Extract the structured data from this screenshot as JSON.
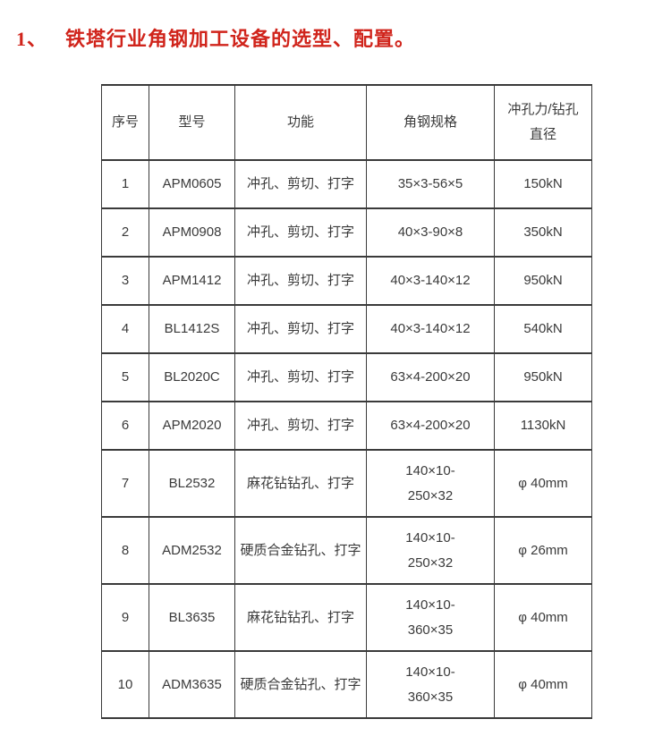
{
  "title": {
    "number": "1、",
    "text": "铁塔行业角钢加工设备的选型、配置。",
    "color": "#d0241b"
  },
  "table": {
    "headers": [
      "序号",
      "型号",
      "功能",
      "角钢规格",
      "冲孔力/钻孔\n直径"
    ],
    "rows": [
      {
        "seq": "1",
        "model": "APM0605",
        "func": "冲孔、剪切、打字",
        "spec": "35×3-56×5",
        "force": "150kN"
      },
      {
        "seq": "2",
        "model": "APM0908",
        "func": "冲孔、剪切、打字",
        "spec": "40×3-90×8",
        "force": "350kN"
      },
      {
        "seq": "3",
        "model": "APM1412",
        "func": "冲孔、剪切、打字",
        "spec": "40×3-140×12",
        "force": "950kN"
      },
      {
        "seq": "4",
        "model": "BL1412S",
        "func": "冲孔、剪切、打字",
        "spec": "40×3-140×12",
        "force": "540kN"
      },
      {
        "seq": "5",
        "model": "BL2020C",
        "func": "冲孔、剪切、打字",
        "spec": "63×4-200×20",
        "force": "950kN"
      },
      {
        "seq": "6",
        "model": "APM2020",
        "func": "冲孔、剪切、打字",
        "spec": "63×4-200×20",
        "force": "1130kN"
      },
      {
        "seq": "7",
        "model": "BL2532",
        "func": "麻花钻钻孔、打字",
        "spec": "140×10-\n250×32",
        "force": "φ 40mm"
      },
      {
        "seq": "8",
        "model": "ADM2532",
        "func": "硬质合金钻孔、打字",
        "spec": "140×10-\n250×32",
        "force": "φ 26mm"
      },
      {
        "seq": "9",
        "model": "BL3635",
        "func": "麻花钻钻孔、打字",
        "spec": "140×10-\n360×35",
        "force": "φ 40mm"
      },
      {
        "seq": "10",
        "model": "ADM3635",
        "func": "硬质合金钻孔、打字",
        "spec": "140×10-\n360×35",
        "force": "φ 40mm"
      }
    ],
    "border_color": "#3a3a3a",
    "text_color": "#3a3a3a"
  }
}
